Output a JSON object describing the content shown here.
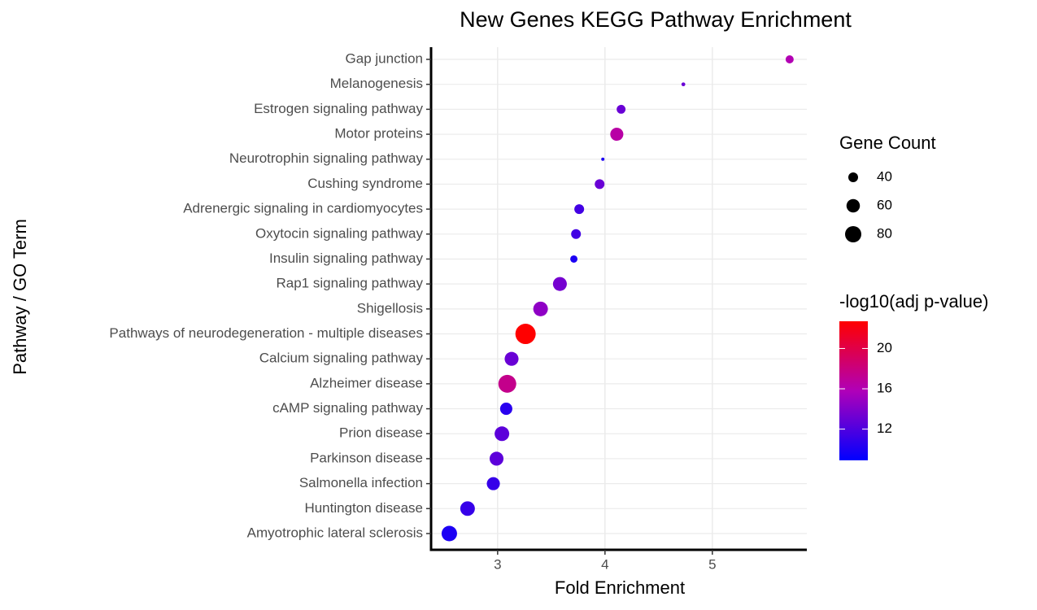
{
  "chart_data": {
    "type": "dotplot",
    "title": "New Genes KEGG Pathway Enrichment",
    "x_label": "Fold Enrichment",
    "y_label": "Pathway / GO Term",
    "categories": [
      "Gap junction",
      "Melanogenesis",
      "Estrogen signaling pathway",
      "Motor proteins",
      "Neurotrophin signaling pathway",
      "Cushing syndrome",
      "Adrenergic signaling in cardiomyocytes",
      "Oxytocin signaling pathway",
      "Insulin signaling pathway",
      "Rap1 signaling pathway",
      "Shigellosis",
      "Pathways of neurodegeneration - multiple diseases",
      "Calcium signaling pathway",
      "Alzheimer disease",
      "cAMP signaling pathway",
      "Prion disease",
      "Parkinson disease",
      "Salmonella infection",
      "Huntington disease",
      "Amyotrophic lateral sclerosis"
    ],
    "values": [
      5.72,
      4.73,
      4.15,
      4.11,
      3.98,
      3.95,
      3.76,
      3.73,
      3.71,
      3.58,
      3.4,
      3.26,
      3.13,
      3.09,
      3.08,
      3.04,
      2.99,
      2.96,
      2.72,
      2.55
    ],
    "gene_count": [
      33,
      21,
      36,
      58,
      20,
      40,
      40,
      40,
      30,
      63,
      68,
      115,
      63,
      93,
      53,
      68,
      63,
      58,
      68,
      74
    ],
    "neg_log10_padj": [
      16,
      13,
      13,
      16.5,
      10,
      13,
      11.5,
      11.5,
      10,
      13.5,
      14.5,
      22.7,
      13,
      17.5,
      10.5,
      12.5,
      12.5,
      11,
      11,
      10
    ],
    "xlim": [
      2.38,
      5.88
    ],
    "xticks": [
      3,
      4,
      5
    ],
    "grid": true,
    "size_legend": {
      "title": "Gene Count",
      "values": [
        40,
        60,
        80
      ]
    },
    "color_legend": {
      "title": "-log10(adj p-value)",
      "lim": [
        8.9,
        22.7
      ],
      "ticks": [
        12,
        16,
        20
      ],
      "colors": [
        "#0000FF",
        "#B000B8",
        "#FF0000"
      ]
    }
  }
}
